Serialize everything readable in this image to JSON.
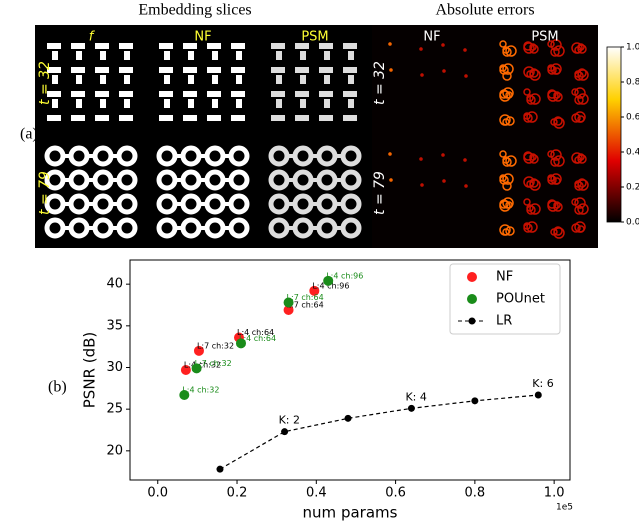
{
  "panel_a": {
    "label": "(a)",
    "titles": [
      "Embedding slices",
      "Absolute errors"
    ],
    "slice_columns": [
      "f",
      "NF",
      "PSM"
    ],
    "error_columns": [
      "NF",
      "PSM"
    ],
    "rows": [
      "t = 32",
      "t = 79"
    ],
    "colorbar": {
      "lim": [
        0,
        1
      ],
      "ticks": [
        {
          "value": 0,
          "label": "0.0"
        },
        0.2,
        0.4,
        0.6,
        0.8,
        {
          "value": 1,
          "label": "1.0"
        }
      ]
    }
  },
  "chart_data": {
    "type": "scatter",
    "label": "(b)",
    "xlabel": "num params",
    "ylabel": "PSNR (dB)",
    "x_offset_label": "1e5",
    "xlim": [
      -0.07,
      1.04
    ],
    "ylim": [
      16.5,
      42.9
    ],
    "xticks": [
      {
        "value": 0,
        "label": "0.0"
      },
      0.2,
      0.4,
      0.6,
      0.8,
      {
        "value": 1,
        "label": "1.0"
      }
    ],
    "yticks": [
      20,
      25,
      30,
      35,
      40
    ],
    "legend": "upper right",
    "series": [
      {
        "name": "NF",
        "color": "#ff2020",
        "x": [
          0.071,
          0.104,
          0.205,
          0.33,
          0.395
        ],
        "values": [
          29.7,
          32.0,
          33.6,
          36.9,
          39.2
        ],
        "point_labels": [
          "L:4 ch:32",
          "L:7 ch:32",
          "L:4 ch:64",
          "L:7 ch:64",
          "L:4 ch:96"
        ],
        "label_color": "#000000"
      },
      {
        "name": "POUnet",
        "color": "#1a8c1a",
        "x": [
          0.067,
          0.098,
          0.21,
          0.33,
          0.43
        ],
        "values": [
          26.7,
          29.9,
          32.9,
          37.8,
          40.4
        ],
        "point_labels": [
          "L:4 ch:32",
          "L:7 ch:32",
          "L:4 ch:64",
          "L:7 ch:64",
          "L:4 ch:96"
        ],
        "label_color": "#1a8c1a"
      },
      {
        "name": "LR",
        "color": "#000000",
        "linestyle": "dashed",
        "x": [
          0.157,
          0.32,
          0.48,
          0.64,
          0.8,
          0.96
        ],
        "values": [
          17.8,
          22.3,
          23.9,
          25.1,
          26.0,
          26.7
        ],
        "point_labels": [
          null,
          "K: 2",
          null,
          "K: 4",
          null,
          "K: 6"
        ],
        "label_color": "#000000"
      }
    ]
  }
}
